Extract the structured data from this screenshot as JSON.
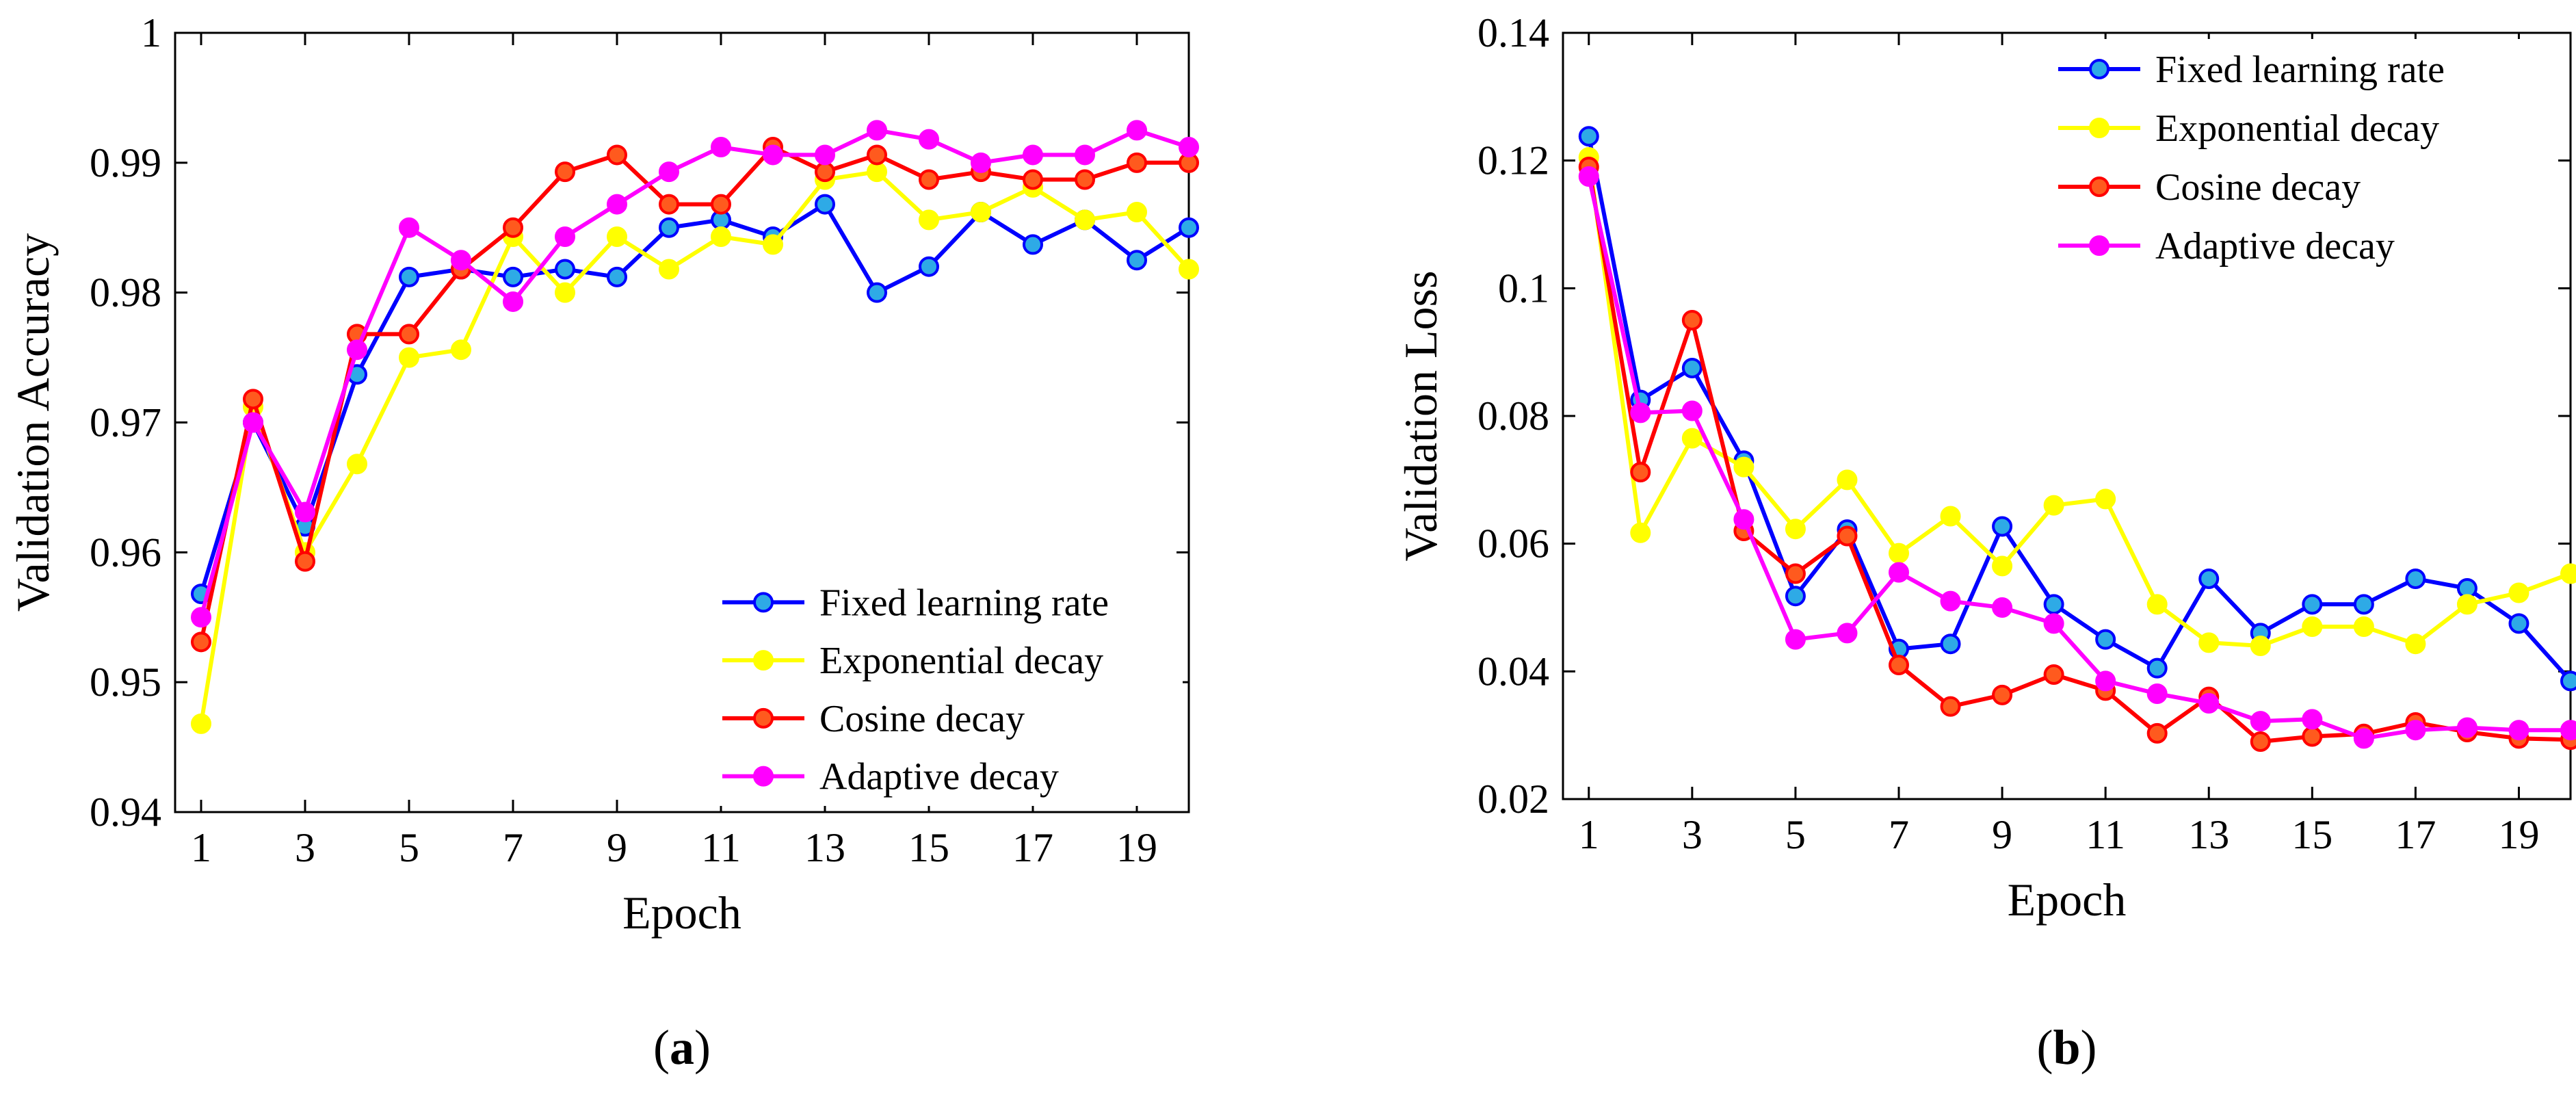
{
  "chart_data": [
    {
      "type": "line",
      "panel_label_open": "(",
      "panel_label_letter": "a",
      "panel_label_close": ")",
      "xlabel": "Epoch",
      "ylabel": "Validation Accuracy",
      "xlim": [
        0.5,
        20
      ],
      "ylim": [
        0.94,
        1.0
      ],
      "xticks": [
        1,
        3,
        5,
        7,
        9,
        11,
        13,
        15,
        17,
        19
      ],
      "yticks": [
        0.94,
        0.95,
        0.96,
        0.97,
        0.98,
        0.99,
        1.0
      ],
      "ytick_labels": [
        "0.94",
        "0.95",
        "0.96",
        "0.97",
        "0.98",
        "0.99",
        "1"
      ],
      "legend_position": "bottom-right",
      "grid": false,
      "x": [
        1,
        2,
        3,
        4,
        5,
        6,
        7,
        8,
        9,
        10,
        11,
        12,
        13,
        14,
        15,
        16,
        17,
        18,
        19,
        20
      ],
      "series": [
        {
          "name": "Fixed learning rate",
          "color": "#0000ff",
          "marker_face": "#2eaae6",
          "values": [
            0.9568,
            0.97,
            0.962,
            0.9737,
            0.9812,
            0.9818,
            0.9812,
            0.9818,
            0.9812,
            0.985,
            0.9856,
            0.9843,
            0.9868,
            0.98,
            0.982,
            0.9862,
            0.9837,
            0.9856,
            0.9825,
            0.985
          ]
        },
        {
          "name": "Exponential decay",
          "color": "#ffff00",
          "marker_face": "#ffff00",
          "values": [
            0.9468,
            0.9712,
            0.96,
            0.9668,
            0.975,
            0.9756,
            0.9843,
            0.98,
            0.9843,
            0.9818,
            0.9843,
            0.9837,
            0.9887,
            0.9893,
            0.9856,
            0.9862,
            0.9881,
            0.9856,
            0.9862,
            0.9818
          ]
        },
        {
          "name": "Cosine decay",
          "color": "#ff0000",
          "marker_face": "#ff5a1e",
          "values": [
            0.9531,
            0.9718,
            0.9593,
            0.9768,
            0.9768,
            0.9818,
            0.985,
            0.9893,
            0.9906,
            0.9868,
            0.9868,
            0.9912,
            0.9893,
            0.9906,
            0.9887,
            0.9893,
            0.9887,
            0.9887,
            0.99,
            0.99
          ]
        },
        {
          "name": "Adaptive decay",
          "color": "#ff00ff",
          "marker_face": "#ff00ff",
          "values": [
            0.955,
            0.97,
            0.9631,
            0.9756,
            0.985,
            0.9825,
            0.9793,
            0.9843,
            0.9868,
            0.9893,
            0.9912,
            0.9906,
            0.9906,
            0.9925,
            0.9918,
            0.99,
            0.9906,
            0.9906,
            0.9925,
            0.9912
          ]
        }
      ]
    },
    {
      "type": "line",
      "panel_label_open": "(",
      "panel_label_letter": "b",
      "panel_label_close": ")",
      "xlabel": "Epoch",
      "ylabel": "Validation Loss",
      "xlim": [
        0.5,
        20
      ],
      "ylim": [
        0.02,
        0.14
      ],
      "xticks": [
        1,
        3,
        5,
        7,
        9,
        11,
        13,
        15,
        17,
        19
      ],
      "yticks": [
        0.02,
        0.04,
        0.06,
        0.08,
        0.1,
        0.12,
        0.14
      ],
      "ytick_labels": [
        "0.02",
        "0.04",
        "0.06",
        "0.08",
        "0.1",
        "0.12",
        "0.14"
      ],
      "legend_position": "top-right",
      "grid": false,
      "x": [
        1,
        2,
        3,
        4,
        5,
        6,
        7,
        8,
        9,
        10,
        11,
        12,
        13,
        14,
        15,
        16,
        17,
        18,
        19,
        20
      ],
      "series": [
        {
          "name": "Fixed learning rate",
          "color": "#0000ff",
          "marker_face": "#2eaae6",
          "values": [
            0.1238,
            0.0825,
            0.0875,
            0.073,
            0.0518,
            0.0622,
            0.0435,
            0.0443,
            0.0627,
            0.0505,
            0.045,
            0.0405,
            0.0545,
            0.046,
            0.0505,
            0.0505,
            0.0545,
            0.053,
            0.0475,
            0.0385
          ]
        },
        {
          "name": "Exponential decay",
          "color": "#ffff00",
          "marker_face": "#ffff00",
          "values": [
            0.1205,
            0.0617,
            0.0765,
            0.072,
            0.0623,
            0.07,
            0.0585,
            0.0643,
            0.0565,
            0.066,
            0.067,
            0.0505,
            0.0445,
            0.044,
            0.047,
            0.047,
            0.0443,
            0.0505,
            0.0523,
            0.0553
          ]
        },
        {
          "name": "Cosine decay",
          "color": "#ff0000",
          "marker_face": "#ff5a1e",
          "values": [
            0.119,
            0.0712,
            0.095,
            0.062,
            0.0553,
            0.0612,
            0.041,
            0.0345,
            0.0363,
            0.0395,
            0.037,
            0.0303,
            0.036,
            0.029,
            0.0298,
            0.0302,
            0.032,
            0.0305,
            0.0295,
            0.0293
          ]
        },
        {
          "name": "Adaptive decay",
          "color": "#ff00ff",
          "marker_face": "#ff00ff",
          "values": [
            0.1175,
            0.0805,
            0.0808,
            0.0638,
            0.045,
            0.046,
            0.0555,
            0.051,
            0.05,
            0.0475,
            0.0385,
            0.0365,
            0.035,
            0.0322,
            0.0325,
            0.0295,
            0.0308,
            0.0312,
            0.0308,
            0.0308
          ]
        }
      ]
    }
  ]
}
